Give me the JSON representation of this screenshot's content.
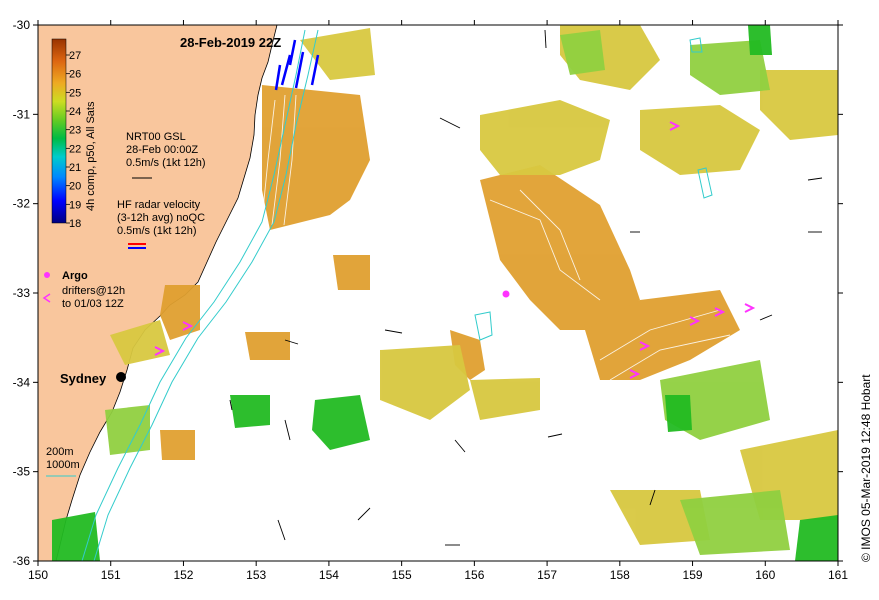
{
  "map": {
    "title": "28-Feb-2019 22Z",
    "credit": "© IMOS 05-Mar-2019 12:48 Hobart",
    "x_ticks": [
      "150",
      "151",
      "152",
      "153",
      "154",
      "155",
      "156",
      "157",
      "158",
      "159",
      "160",
      "161"
    ],
    "y_ticks": [
      "-30",
      "-31",
      "-32",
      "-33",
      "-34",
      "-35",
      "-36"
    ],
    "lon_range": [
      150,
      161
    ],
    "lat_range": [
      -36,
      -30
    ],
    "city_label": "Sydney",
    "colors": {
      "land": "#f9c69d",
      "ocean": "#ffffff",
      "isobath": "#33cccc",
      "argo": "#ff33ff",
      "radar_red": "#ff0000",
      "radar_blue": "#0000ff"
    }
  },
  "colorbar": {
    "ticks": [
      "27",
      "26",
      "25",
      "24",
      "23",
      "22",
      "21",
      "20",
      "19",
      "18"
    ],
    "label": "4h comp, p50, All Sats"
  },
  "legend": {
    "gsl": [
      "NRT00 GSL",
      "28-Feb 00:00Z",
      "0.5m/s (1kt 12h)"
    ],
    "radar": [
      "HF radar velocity",
      "(3-12h avg) noQC",
      "0.5m/s (1kt 12h)"
    ],
    "argo": "Argo",
    "drifters": [
      "drifters@12h",
      "to 01/03 12Z"
    ],
    "isobaths": [
      "200m",
      "1000m"
    ]
  }
}
